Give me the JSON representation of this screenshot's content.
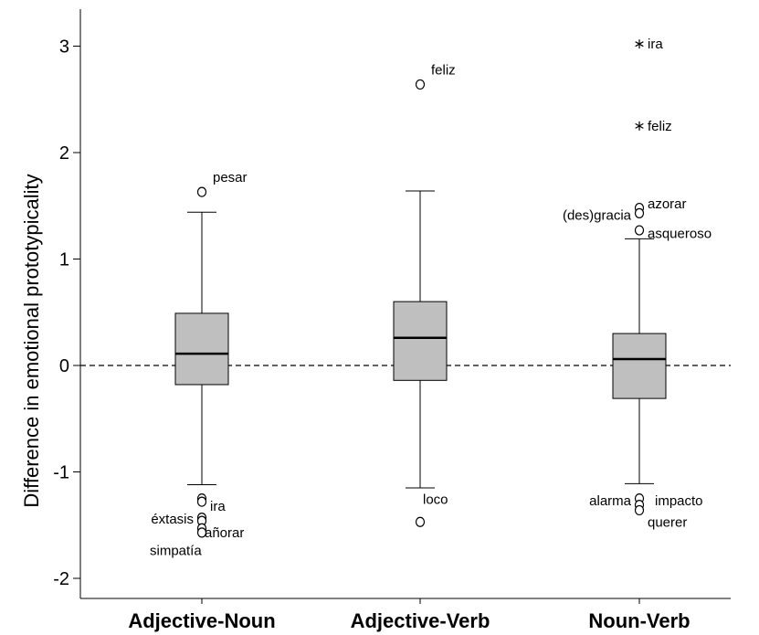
{
  "chart_data": {
    "type": "boxplot",
    "ylabel": "Difference in emotional  prototypicality",
    "ylim": [
      -2.15,
      3.35
    ],
    "yticks": [
      "-2",
      "-1",
      "0",
      "1",
      "2",
      "3"
    ],
    "ytick_values": [
      -2,
      -1,
      0,
      1,
      2,
      3
    ],
    "reference_line": 0,
    "box_color": "#bfbfbf",
    "categories": [
      "Adjective-Noun",
      "Adjective-Verb",
      "Noun-Verb"
    ],
    "boxes": [
      {
        "q1": -0.18,
        "median": 0.11,
        "q3": 0.49,
        "whisker_low": -1.12,
        "whisker_high": 1.44,
        "outliers": [
          {
            "y": 1.63,
            "marker": "circle"
          },
          {
            "y": -1.25,
            "marker": "circle"
          },
          {
            "y": -1.28,
            "marker": "circle"
          },
          {
            "y": -1.43,
            "marker": "circle"
          },
          {
            "y": -1.46,
            "marker": "circle"
          },
          {
            "y": -1.53,
            "marker": "circle"
          },
          {
            "y": -1.57,
            "marker": "circle"
          }
        ]
      },
      {
        "q1": -0.14,
        "median": 0.26,
        "q3": 0.6,
        "whisker_low": -1.15,
        "whisker_high": 1.64,
        "outliers": [
          {
            "y": 2.64,
            "marker": "circle"
          },
          {
            "y": -1.47,
            "marker": "circle"
          }
        ]
      },
      {
        "q1": -0.31,
        "median": 0.06,
        "q3": 0.3,
        "whisker_low": -1.11,
        "whisker_high": 1.19,
        "outliers": [
          {
            "y": 3.02,
            "marker": "star"
          },
          {
            "y": 2.25,
            "marker": "star"
          },
          {
            "y": 1.48,
            "marker": "circle"
          },
          {
            "y": 1.43,
            "marker": "circle"
          },
          {
            "y": 1.27,
            "marker": "circle"
          },
          {
            "y": -1.25,
            "marker": "circle"
          },
          {
            "y": -1.31,
            "marker": "circle"
          },
          {
            "y": -1.36,
            "marker": "circle"
          }
        ]
      }
    ],
    "annotations": [
      {
        "box": 0,
        "y": 1.63,
        "text": "pesar",
        "pos": "right-up"
      },
      {
        "box": 0,
        "y": -1.32,
        "text": "ira",
        "pos": "right"
      },
      {
        "box": 0,
        "y": -1.44,
        "text": "éxtasis",
        "pos": "left"
      },
      {
        "box": 0,
        "y": -1.57,
        "text": "añorar",
        "pos": "right-tight"
      },
      {
        "box": 0,
        "y": -1.74,
        "text": "simpatía",
        "pos": "below-left"
      },
      {
        "box": 1,
        "y": 2.64,
        "text": "feliz",
        "pos": "right-up"
      },
      {
        "box": 1,
        "y": -1.3,
        "text": "loco",
        "pos": "above"
      },
      {
        "box": 2,
        "y": 3.02,
        "text": "ira",
        "pos": "right"
      },
      {
        "box": 2,
        "y": 2.25,
        "text": "feliz",
        "pos": "right"
      },
      {
        "box": 2,
        "y": 1.52,
        "text": "azorar",
        "pos": "right"
      },
      {
        "box": 2,
        "y": 1.41,
        "text": "(des)gracia",
        "pos": "left"
      },
      {
        "box": 2,
        "y": 1.24,
        "text": "asqueroso",
        "pos": "right"
      },
      {
        "box": 2,
        "y": -1.27,
        "text": "alarma",
        "pos": "left"
      },
      {
        "box": 2,
        "y": -1.27,
        "text": "impacto",
        "pos": "right-far"
      },
      {
        "box": 2,
        "y": -1.47,
        "text": "querer",
        "pos": "right"
      }
    ]
  }
}
